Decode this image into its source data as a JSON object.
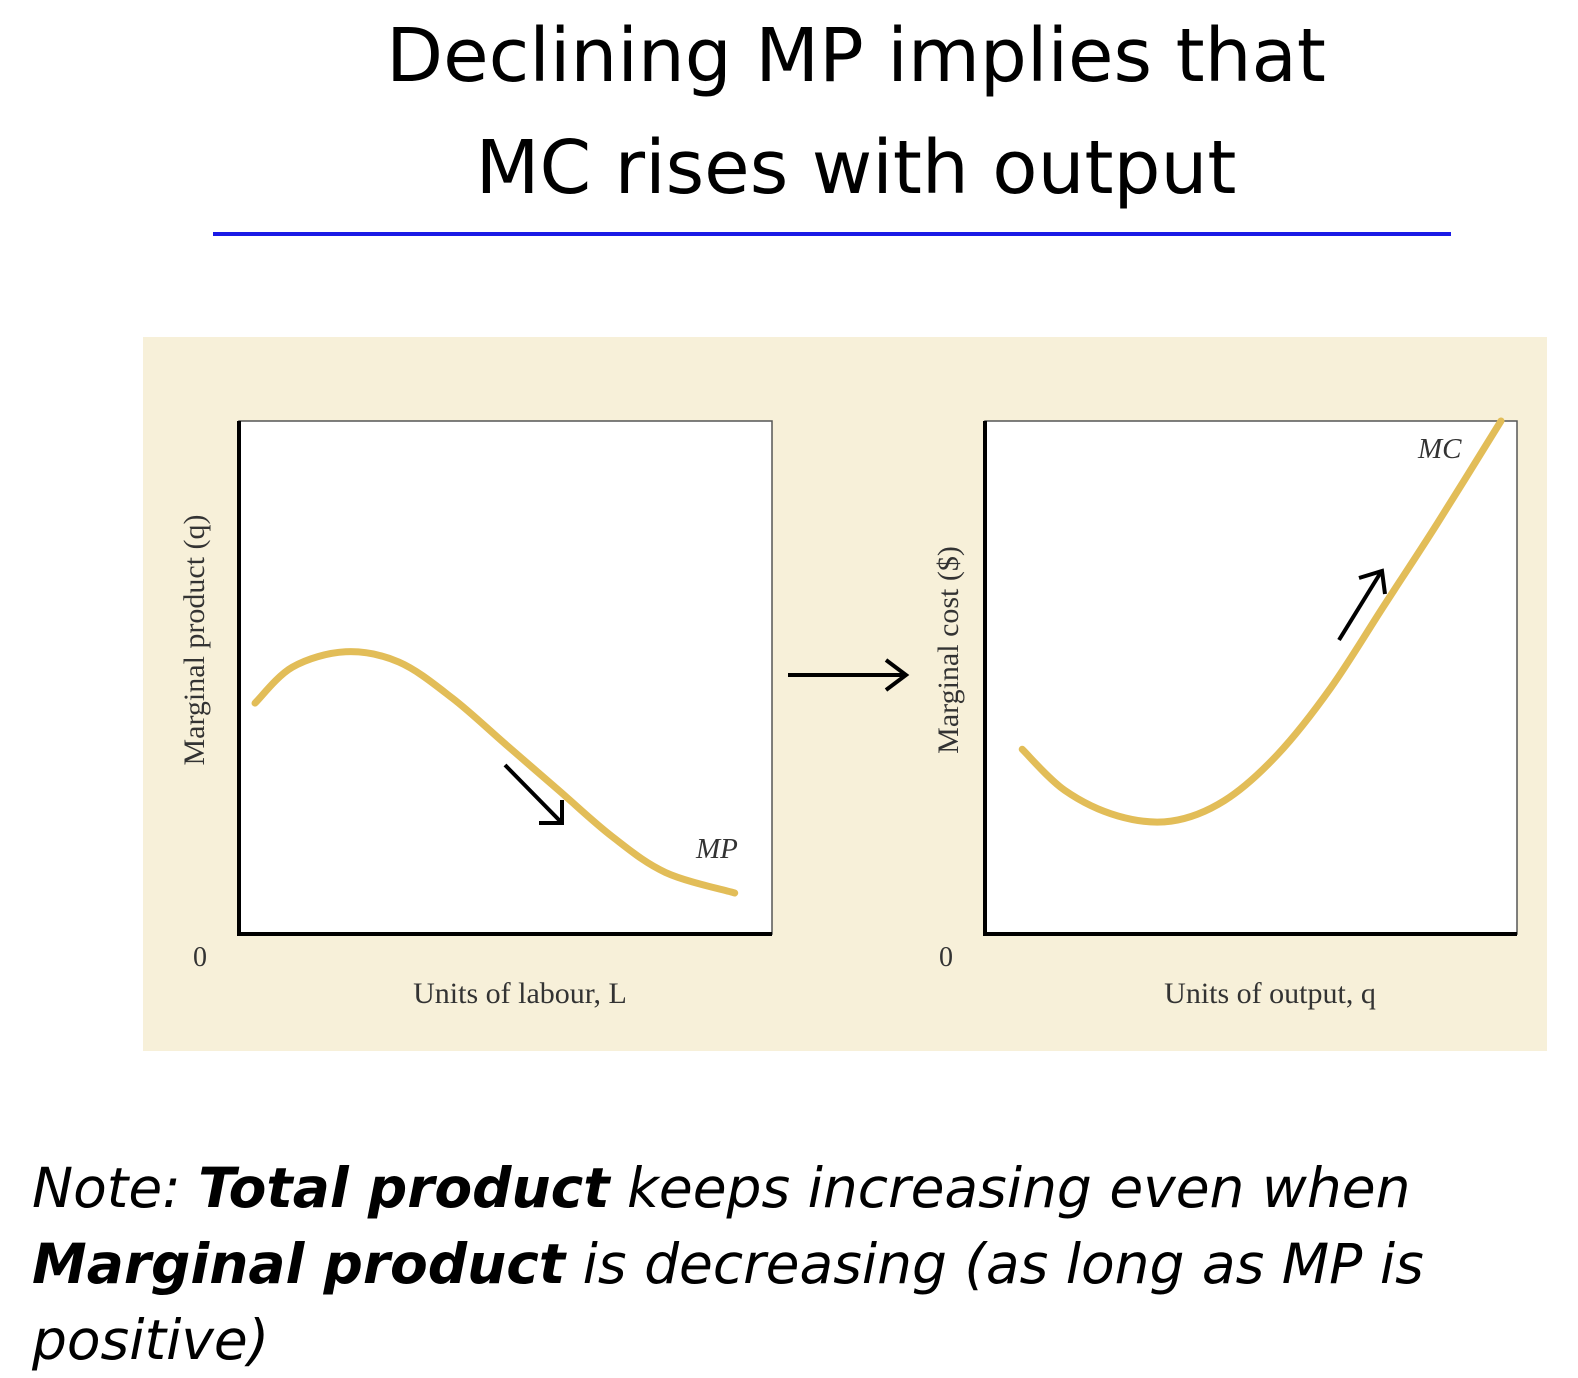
{
  "slide": {
    "title_line1": "Declining MP implies that",
    "title_line2": "MC rises with output",
    "accent_color": "#1a1ae6",
    "panel_color": "#f7f0d9",
    "curve_color": "#e2bd58"
  },
  "chart_data": [
    {
      "type": "line",
      "title": "",
      "xlabel": "Units of labour, L",
      "ylabel": "Marginal product (q)",
      "origin_label": "0",
      "series": [
        {
          "name": "MP",
          "x": [
            0.03,
            0.1,
            0.2,
            0.3,
            0.4,
            0.5,
            0.6,
            0.7,
            0.8,
            0.93
          ],
          "y": [
            0.45,
            0.52,
            0.55,
            0.53,
            0.46,
            0.37,
            0.28,
            0.19,
            0.12,
            0.08
          ]
        }
      ],
      "annotations": [
        "downward arrow along MP"
      ]
    },
    {
      "type": "line",
      "title": "",
      "xlabel": "Units of output, q",
      "ylabel": "Marginal cost ($)",
      "origin_label": "0",
      "series": [
        {
          "name": "MC",
          "x": [
            0.07,
            0.15,
            0.25,
            0.35,
            0.45,
            0.55,
            0.65,
            0.75,
            0.85,
            0.97
          ],
          "y": [
            0.36,
            0.28,
            0.23,
            0.22,
            0.26,
            0.35,
            0.48,
            0.64,
            0.8,
            1.0
          ]
        }
      ],
      "annotations": [
        "upward arrow along MC"
      ]
    }
  ],
  "note": {
    "prefix": "Note: ",
    "bold1": "Total product",
    "middle": " keeps increasing even when ",
    "bold2": "Marginal product",
    "suffix": " is decreasing (as long as MP is positive)"
  }
}
